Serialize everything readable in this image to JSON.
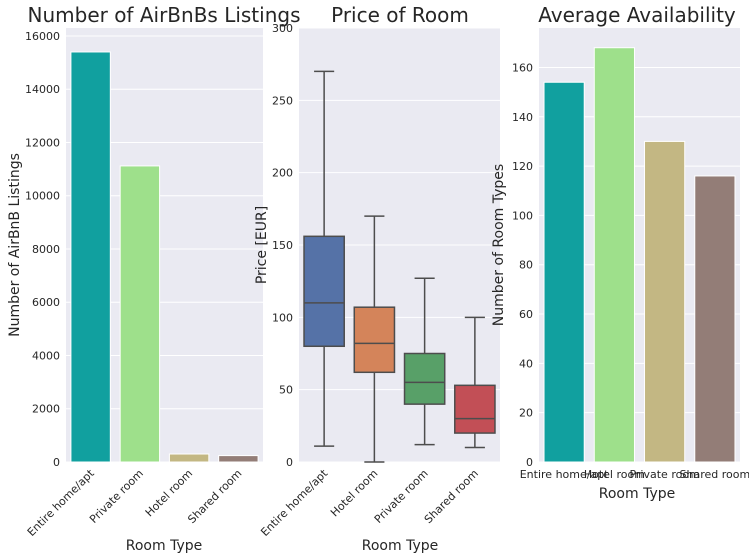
{
  "chart_data": [
    {
      "type": "bar",
      "title": "Number of AirBnBs Listings",
      "xlabel": "Room Type",
      "ylabel": "Number of AirBnB Listings",
      "categories": [
        "Entire home/apt",
        "Private room",
        "Hotel room",
        "Shared room"
      ],
      "values": [
        15400,
        11120,
        300,
        240
      ],
      "colors": [
        "#11a09f",
        "#9ee08b",
        "#c3b783",
        "#937d77"
      ],
      "ylim": [
        0,
        16300
      ],
      "yticks": [
        0,
        2000,
        4000,
        6000,
        8000,
        10000,
        12000,
        14000,
        16000
      ],
      "ytick_labels": [
        "0",
        "2000",
        "4000",
        "6000",
        "8000",
        "10000",
        "12000",
        "14000",
        "16000"
      ],
      "tick_rotation": -45,
      "grid": true
    },
    {
      "type": "box",
      "title": "Price of Room",
      "xlabel": "Room Type",
      "ylabel": "Price [EUR]",
      "categories": [
        "Entire home/apt",
        "Hotel room",
        "Private room",
        "Shared room"
      ],
      "boxes": [
        {
          "whisker_low": 11,
          "q1": 80,
          "median": 110,
          "q3": 156,
          "whisker_high": 270
        },
        {
          "whisker_low": 0,
          "q1": 62,
          "median": 82,
          "q3": 107,
          "whisker_high": 170
        },
        {
          "whisker_low": 12,
          "q1": 40,
          "median": 55,
          "q3": 75,
          "whisker_high": 127
        },
        {
          "whisker_low": 10,
          "q1": 20,
          "median": 30,
          "q3": 53,
          "whisker_high": 100
        }
      ],
      "colors": [
        "#5572a7",
        "#d4845a",
        "#58a068",
        "#c24f56"
      ],
      "ylim": [
        0,
        300
      ],
      "yticks": [
        0,
        50,
        100,
        150,
        200,
        250,
        300
      ],
      "ytick_labels": [
        "0",
        "50",
        "100",
        "150",
        "200",
        "250",
        "300"
      ],
      "tick_rotation": -45,
      "grid": true
    },
    {
      "type": "bar",
      "title": "Average Availability",
      "xlabel": "Room Type",
      "ylabel": "Number of Room Types",
      "categories": [
        "Entire home/apt",
        "Hotel room",
        "Private room",
        "Shared room"
      ],
      "values": [
        154,
        168,
        130,
        116
      ],
      "colors": [
        "#11a09f",
        "#9ee08b",
        "#c3b783",
        "#937d77"
      ],
      "ylim": [
        0,
        176
      ],
      "yticks": [
        0,
        20,
        40,
        60,
        80,
        100,
        120,
        140,
        160
      ],
      "ytick_labels": [
        "0",
        "20",
        "40",
        "60",
        "80",
        "100",
        "120",
        "140",
        "160"
      ],
      "tick_rotation": 0,
      "grid": true
    }
  ]
}
